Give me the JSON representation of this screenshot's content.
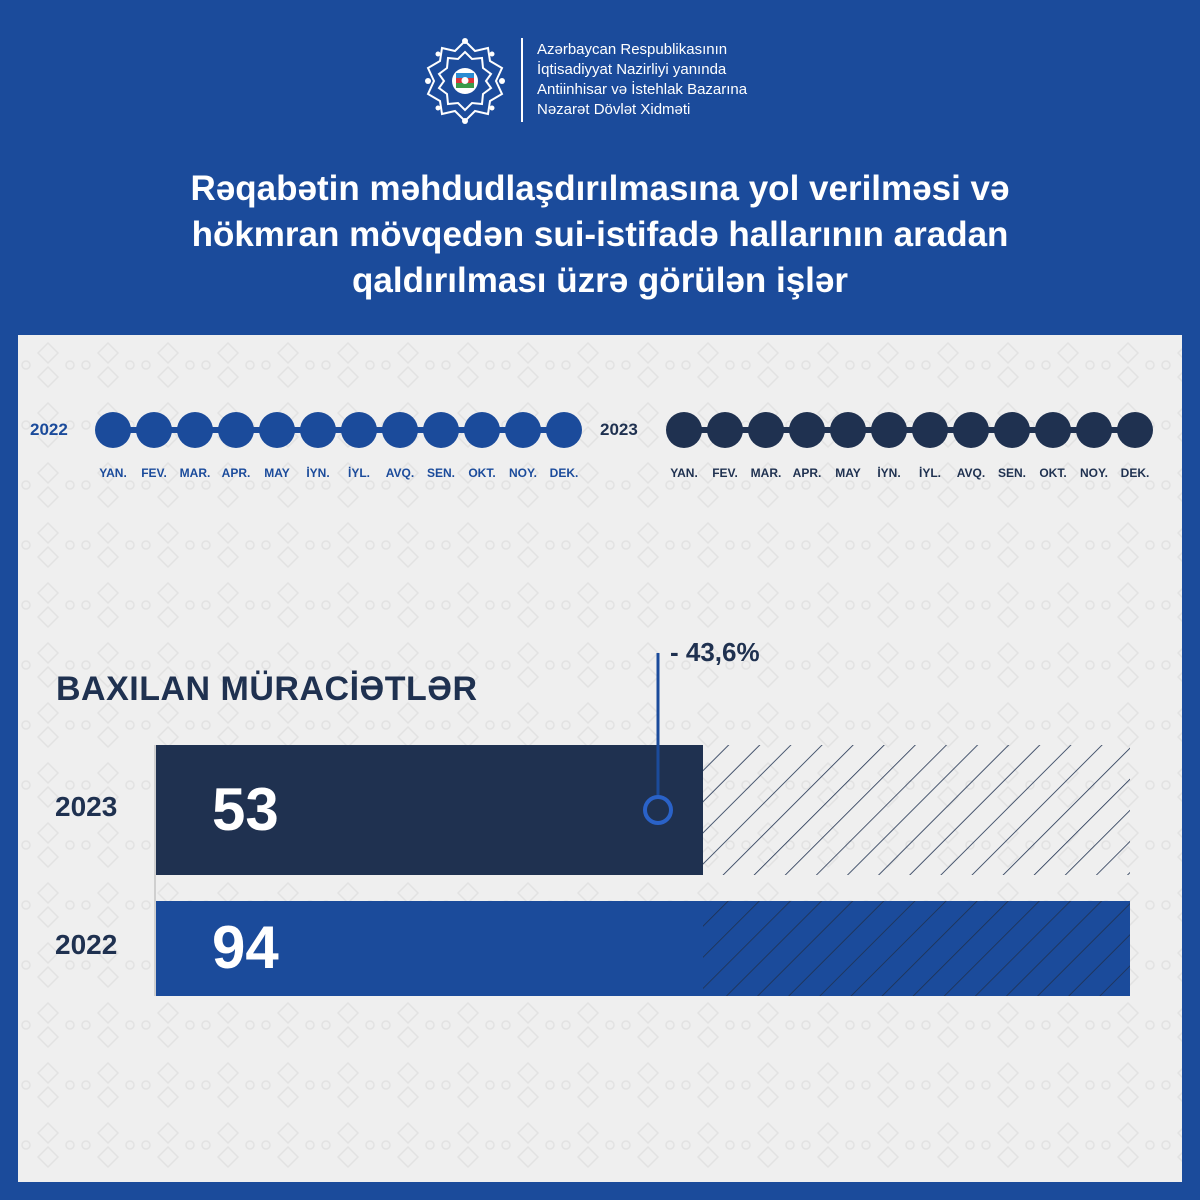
{
  "header": {
    "org_lines": [
      "Azərbaycan Respublikasının",
      "İqtisadiyyat Nazirliyi yanında",
      "Antiinhisar və İstehlak Bazarına",
      "Nəzarət Dövlət Xidməti"
    ],
    "title_lines": [
      "Rəqabətin məhdudlaşdırılmasına yol verilməsi və",
      "hökmran mövqedən sui-istifadə hallarının aradan",
      "qaldırılması üzrə görülən işlər"
    ],
    "logo_icon": "emblem-icon"
  },
  "timeline": {
    "months": [
      "YAN.",
      "FEV.",
      "MAR.",
      "APR.",
      "MAY",
      "İYN.",
      "İYL.",
      "AVQ.",
      "SEN.",
      "OKT.",
      "NOY.",
      "DEK."
    ],
    "left": {
      "year": "2022",
      "color": "#1b4b9b"
    },
    "right": {
      "year": "2023",
      "color": "#1f3150"
    }
  },
  "chart_data": {
    "type": "bar",
    "orientation": "horizontal",
    "title": "BAXILAN MÜRACİƏTLƏR",
    "categories": [
      "2023",
      "2022"
    ],
    "values": [
      53,
      94
    ],
    "value_labels": [
      "53",
      "94"
    ],
    "colors": [
      "#1f3150",
      "#1b4b9b"
    ],
    "annotation": "- 43,6%",
    "xlim": [
      0,
      100
    ]
  }
}
